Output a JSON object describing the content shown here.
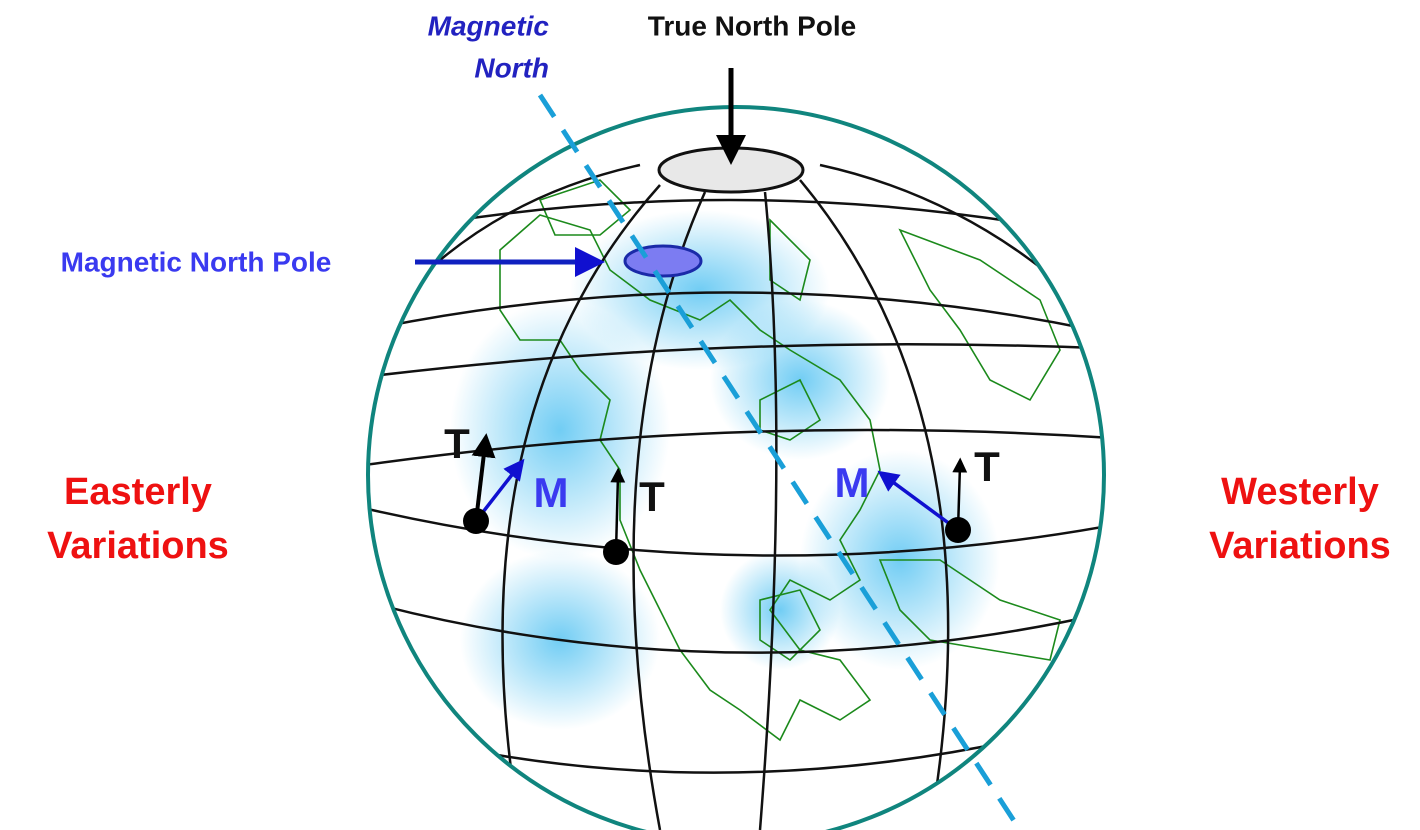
{
  "labels": {
    "magnetic_north": [
      "Magnetic",
      "North"
    ],
    "true_north_pole": "True North Pole",
    "magnetic_north_pole": "Magnetic North Pole",
    "easterly": [
      "Easterly",
      "Variations"
    ],
    "westerly": [
      "Westerly",
      "Variations"
    ],
    "true_markers": [
      "T",
      "T",
      "T"
    ],
    "magnetic_markers": [
      "M",
      "M"
    ]
  }
}
